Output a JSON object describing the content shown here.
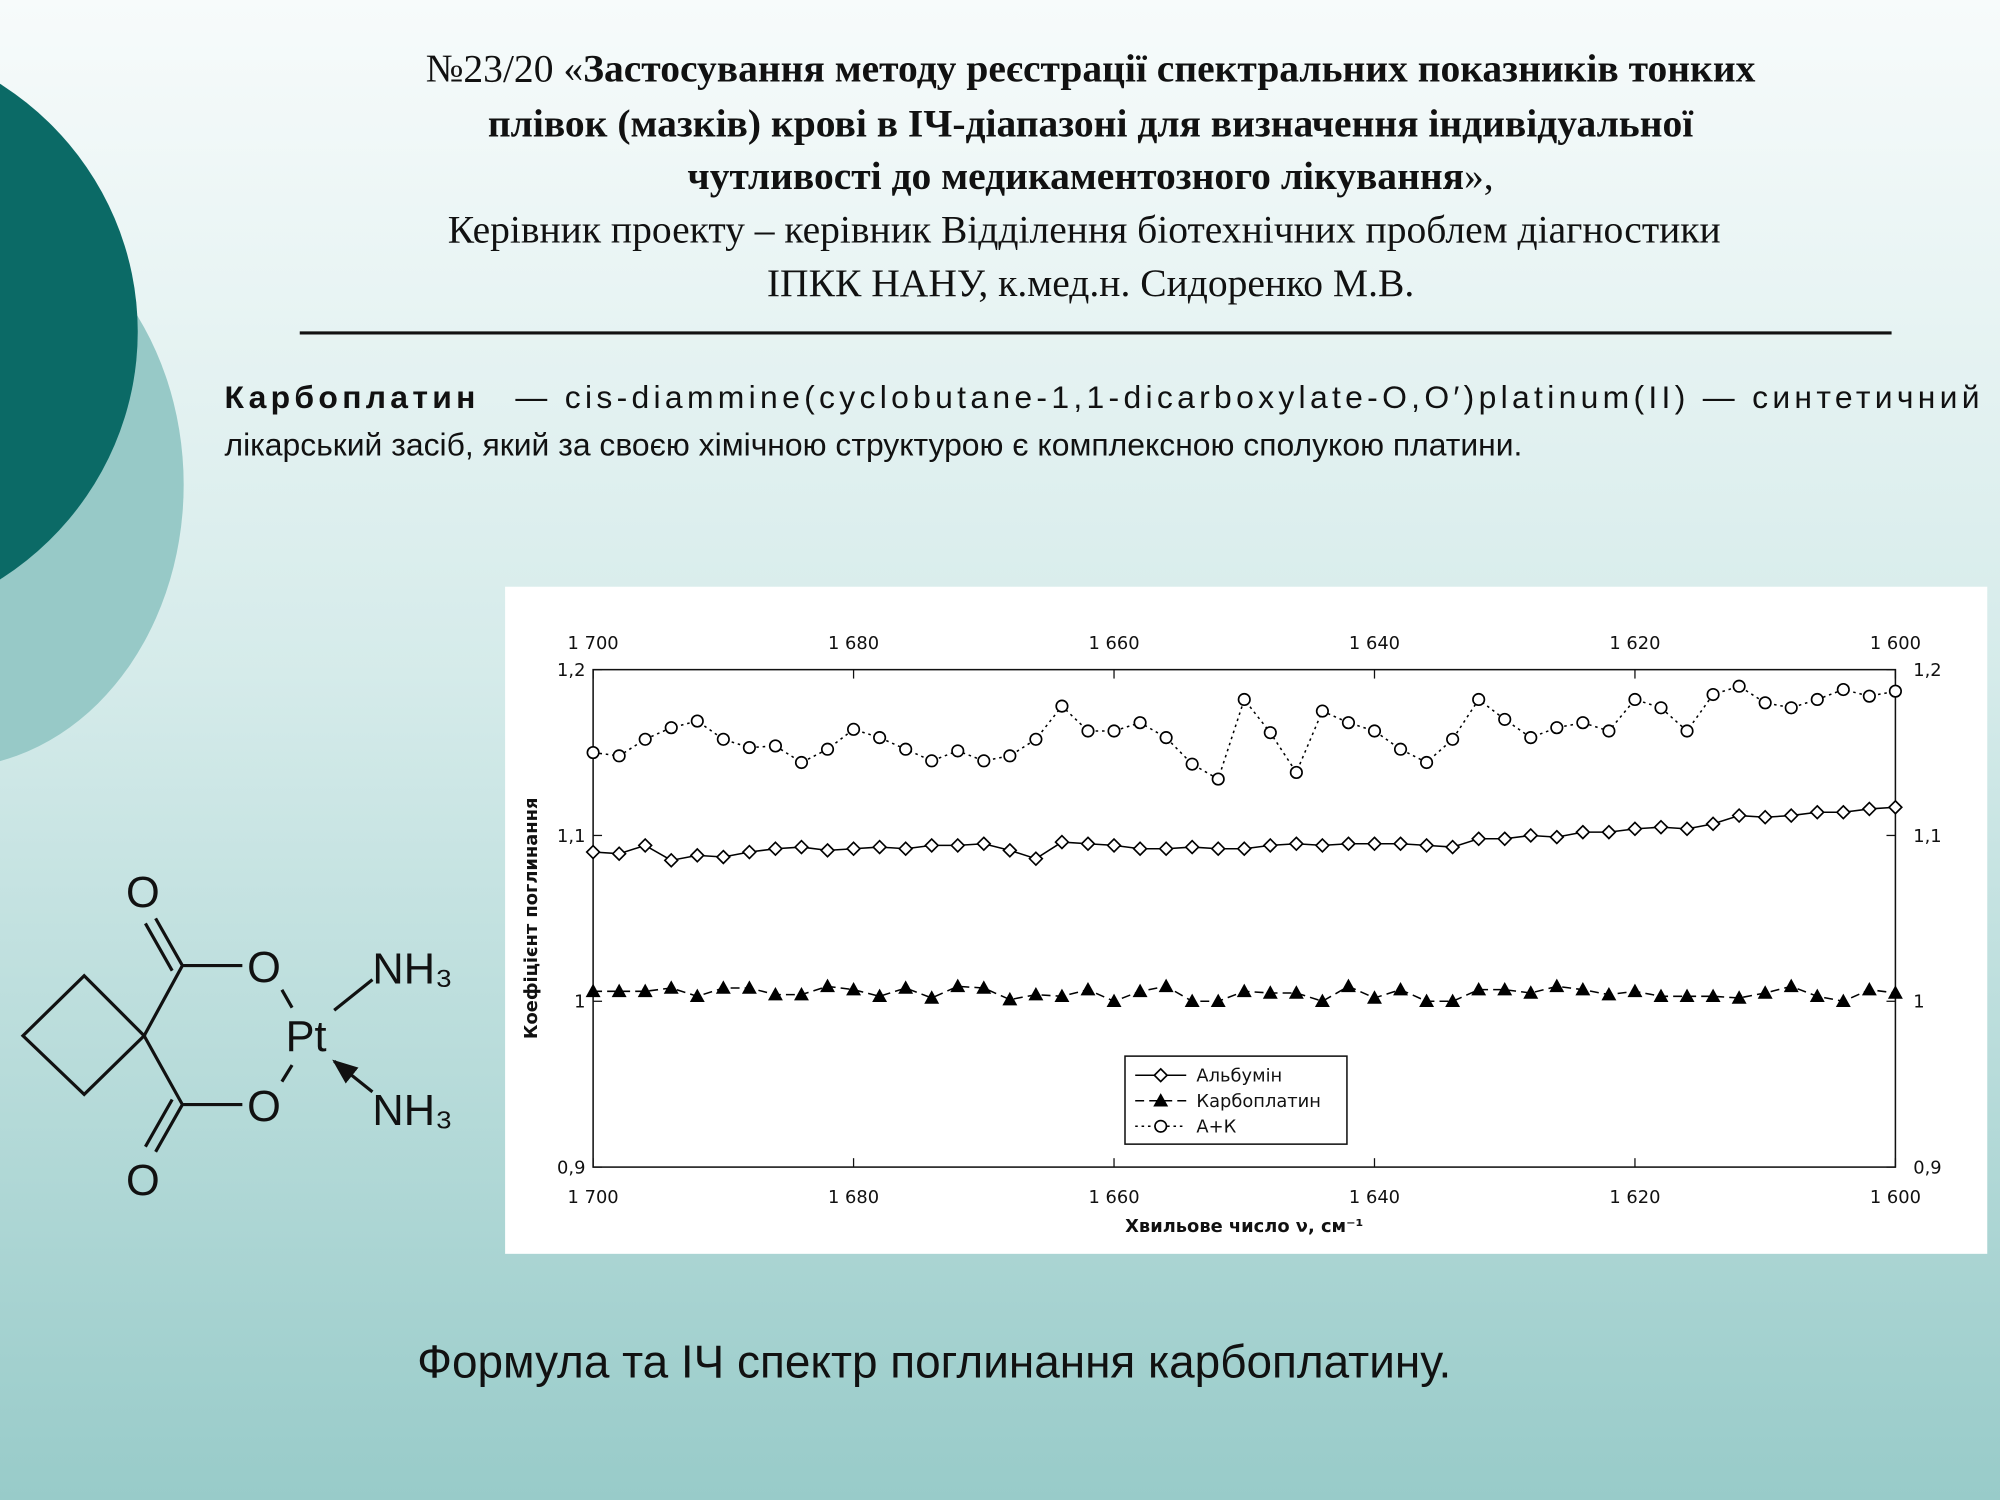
{
  "header": {
    "number": "№23/20 «",
    "title": [
      "Застосування методу реєстрації спектральних показників тонких",
      "плівок (мазків) крові в ІЧ-діапазоні для визначення індивідуальної",
      "чутливості до медикаментозного лікування"
    ],
    "closing": "»,",
    "supervisor": [
      "Керівник проекту – керівник Відділення біотехнічних проблем діагностики",
      "ІПКК НАНУ, к.мед.н. Сидоренко М.В."
    ]
  },
  "description": {
    "term": "Карбоплатин",
    "lines": [
      "— cis-diammine(cyclobutane-1,1-dicarboxylate-O,O′)platinum(II) — синтетичний",
      "лікарський засіб, який за своєю хімічною структурою є комплексною сполукою платини."
    ]
  },
  "formula": {
    "atoms": [
      "O",
      "O",
      "Pt",
      "NH₃",
      "O",
      "NH₃",
      "O"
    ]
  },
  "caption": "Формула та ІЧ спектр поглинання карбоплатину.",
  "chart_data": {
    "type": "line",
    "x_label": "Хвильове число ν, см⁻¹",
    "y_label": "Коефіцієнт поглинання",
    "x": [
      1700,
      1698,
      1696,
      1694,
      1692,
      1690,
      1688,
      1686,
      1684,
      1682,
      1680,
      1678,
      1676,
      1674,
      1672,
      1670,
      1668,
      1666,
      1664,
      1662,
      1660,
      1658,
      1656,
      1654,
      1652,
      1650,
      1648,
      1646,
      1644,
      1642,
      1640,
      1638,
      1636,
      1634,
      1632,
      1630,
      1628,
      1626,
      1624,
      1622,
      1620,
      1618,
      1616,
      1614,
      1612,
      1610,
      1608,
      1606,
      1604,
      1602,
      1600
    ],
    "xlim": [
      1700,
      1600
    ],
    "xticks": [
      {
        "value": 1700,
        "label": "1 700"
      },
      {
        "value": 1680,
        "label": "1 680"
      },
      {
        "value": 1660,
        "label": "1 660"
      },
      {
        "value": 1640,
        "label": "1 640"
      },
      {
        "value": 1620,
        "label": "1 620"
      },
      {
        "value": 1600,
        "label": "1 600"
      }
    ],
    "ylim": [
      0.9,
      1.2
    ],
    "yticks": [
      {
        "value": 0.9,
        "label": "0,9"
      },
      1,
      {
        "value": 1.1,
        "label": "1,1"
      },
      {
        "value": 1.2,
        "label": "1,2"
      }
    ],
    "legend": "lower-center",
    "series": [
      {
        "name": "Альбумін",
        "color": "#000000",
        "marker": "diamond",
        "dash": "solid",
        "values": [
          1.09,
          1.089,
          1.094,
          1.085,
          1.088,
          1.087,
          1.09,
          1.092,
          1.093,
          1.091,
          1.092,
          1.093,
          1.092,
          1.094,
          1.094,
          1.095,
          1.091,
          1.086,
          1.096,
          1.095,
          1.094,
          1.092,
          1.092,
          1.093,
          1.092,
          1.092,
          1.094,
          1.095,
          1.094,
          1.095,
          1.095,
          1.095,
          1.094,
          1.093,
          1.098,
          1.098,
          1.1,
          1.099,
          1.102,
          1.102,
          1.104,
          1.105,
          1.104,
          1.107,
          1.112,
          1.111,
          1.112,
          1.114,
          1.114,
          1.116,
          1.117
        ]
      },
      {
        "name": "Карбоплатин",
        "color": "#000000",
        "marker": "triangle",
        "dash": "dashed",
        "values": [
          1.006,
          1.006,
          1.006,
          1.008,
          1.003,
          1.008,
          1.008,
          1.004,
          1.004,
          1.009,
          1.007,
          1.003,
          1.008,
          1.002,
          1.009,
          1.008,
          1.001,
          1.004,
          1.003,
          1.007,
          1.0,
          1.006,
          1.009,
          1.0,
          1.0,
          1.006,
          1.005,
          1.005,
          1.0,
          1.009,
          1.002,
          1.007,
          1.0,
          1.0,
          1.007,
          1.007,
          1.005,
          1.009,
          1.007,
          1.004,
          1.006,
          1.003,
          1.003,
          1.003,
          1.002,
          1.005,
          1.009,
          1.003,
          1.0,
          1.007,
          1.005
        ]
      },
      {
        "name": "А+К",
        "color": "#000000",
        "marker": "circle",
        "dash": "dotted",
        "values": [
          1.15,
          1.148,
          1.158,
          1.165,
          1.169,
          1.158,
          1.153,
          1.154,
          1.144,
          1.152,
          1.164,
          1.159,
          1.152,
          1.145,
          1.151,
          1.145,
          1.148,
          1.158,
          1.178,
          1.163,
          1.163,
          1.168,
          1.159,
          1.143,
          1.134,
          1.182,
          1.162,
          1.138,
          1.175,
          1.168,
          1.163,
          1.152,
          1.144,
          1.158,
          1.182,
          1.17,
          1.159,
          1.165,
          1.168,
          1.163,
          1.182,
          1.177,
          1.163,
          1.185,
          1.19,
          1.18,
          1.177,
          1.182,
          1.188,
          1.184,
          1.187
        ]
      }
    ]
  }
}
